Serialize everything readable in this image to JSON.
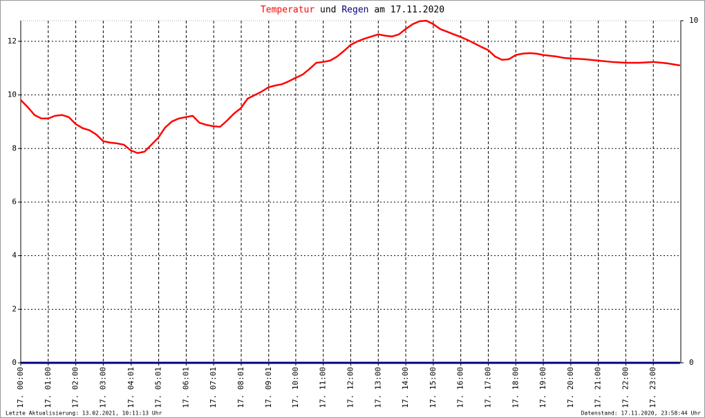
{
  "chart_data": {
    "type": "line",
    "title_parts": [
      "Temperatur",
      "und",
      "Regen",
      "am 17.11.2020"
    ],
    "footer_left": "Letzte Aktualisierung: 13.02.2021, 10:11:13 Uhr",
    "footer_right": "Datenstand: 17.11.2020, 23:58:44 Uhr",
    "xlim": [
      0,
      24
    ],
    "xticks": [
      {
        "value": 0,
        "label": "17. 00:00"
      },
      {
        "value": 1,
        "label": "17. 01:00"
      },
      {
        "value": 2,
        "label": "17. 02:00"
      },
      {
        "value": 3,
        "label": "17. 03:00"
      },
      {
        "value": 4.0167,
        "label": "17. 04:01"
      },
      {
        "value": 5.0167,
        "label": "17. 05:01"
      },
      {
        "value": 6.0167,
        "label": "17. 06:01"
      },
      {
        "value": 7.0167,
        "label": "17. 07:01"
      },
      {
        "value": 8.0167,
        "label": "17. 08:01"
      },
      {
        "value": 9.0167,
        "label": "17. 09:01"
      },
      {
        "value": 10,
        "label": "17. 10:00"
      },
      {
        "value": 11,
        "label": "17. 11:00"
      },
      {
        "value": 12,
        "label": "17. 12:00"
      },
      {
        "value": 13,
        "label": "17. 13:00"
      },
      {
        "value": 14,
        "label": "17. 14:00"
      },
      {
        "value": 15,
        "label": "17. 15:00"
      },
      {
        "value": 16,
        "label": "17. 16:00"
      },
      {
        "value": 17,
        "label": "17. 17:00"
      },
      {
        "value": 18,
        "label": "17. 18:00"
      },
      {
        "value": 19,
        "label": "17. 19:00"
      },
      {
        "value": 20,
        "label": "17. 20:00"
      },
      {
        "value": 21,
        "label": "17. 21:00"
      },
      {
        "value": 22,
        "label": "17. 22:00"
      },
      {
        "value": 23,
        "label": "17. 23:00"
      }
    ],
    "ylim": [
      0,
      12.77
    ],
    "yticks": [
      0,
      2,
      4,
      6,
      8,
      10,
      12
    ],
    "y2lim": [
      0,
      10
    ],
    "y2ticks": [
      0,
      10
    ],
    "grid": true,
    "series": [
      {
        "color": "#ff0000",
        "x": [
          0,
          0.25,
          0.5,
          0.75,
          1,
          1.25,
          1.5,
          1.75,
          2,
          2.25,
          2.5,
          2.75,
          3,
          3.25,
          3.5,
          3.75,
          4,
          4.25,
          4.5,
          4.75,
          5,
          5.25,
          5.5,
          5.75,
          6,
          6.25,
          6.5,
          6.75,
          7,
          7.25,
          7.5,
          7.75,
          8,
          8.25,
          8.5,
          8.75,
          9,
          9.25,
          9.5,
          9.75,
          10,
          10.25,
          10.5,
          10.75,
          11,
          11.25,
          11.5,
          11.75,
          12,
          12.25,
          12.5,
          12.75,
          13,
          13.25,
          13.5,
          13.75,
          14,
          14.25,
          14.5,
          14.75,
          15,
          15.25,
          15.5,
          15.75,
          16,
          16.25,
          16.5,
          16.75,
          17,
          17.25,
          17.5,
          17.75,
          18,
          18.25,
          18.5,
          18.75,
          19,
          19.25,
          19.5,
          19.75,
          20,
          20.5,
          21,
          21.5,
          22,
          22.5,
          23,
          23.5,
          23.97
        ],
        "values": [
          9.81,
          9.55,
          9.25,
          9.12,
          9.12,
          9.22,
          9.25,
          9.17,
          8.91,
          8.76,
          8.68,
          8.52,
          8.27,
          8.22,
          8.19,
          8.14,
          7.93,
          7.83,
          7.88,
          8.14,
          8.4,
          8.78,
          9.01,
          9.12,
          9.17,
          9.22,
          8.96,
          8.88,
          8.83,
          8.81,
          9.04,
          9.3,
          9.5,
          9.86,
          9.99,
          10.12,
          10.28,
          10.35,
          10.4,
          10.51,
          10.64,
          10.76,
          10.97,
          11.2,
          11.23,
          11.28,
          11.43,
          11.64,
          11.87,
          12.0,
          12.1,
          12.18,
          12.26,
          12.21,
          12.18,
          12.26,
          12.46,
          12.64,
          12.75,
          12.77,
          12.64,
          12.46,
          12.36,
          12.26,
          12.16,
          12.05,
          11.92,
          11.79,
          11.67,
          11.43,
          11.31,
          11.33,
          11.49,
          11.54,
          11.56,
          11.54,
          11.49,
          11.46,
          11.43,
          11.38,
          11.36,
          11.33,
          11.28,
          11.23,
          11.2,
          11.2,
          11.23,
          11.18,
          11.1
        ]
      },
      {
        "color": "#000080",
        "axis": "y2",
        "x": [
          0,
          23.97
        ],
        "values": [
          0,
          0
        ]
      }
    ]
  }
}
